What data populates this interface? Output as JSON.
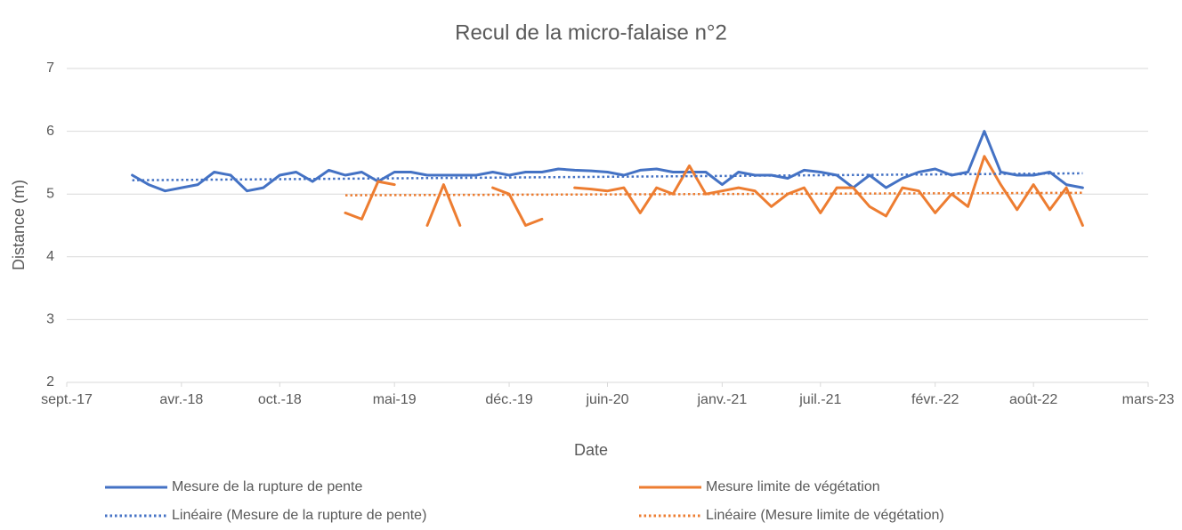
{
  "chart_data": {
    "type": "line",
    "title": "Recul de la micro-falaise n°2",
    "x_label": "Date",
    "y_label": "Distance (m)",
    "x": [
      "2018-01",
      "2018-02",
      "2018-03",
      "2018-04",
      "2018-05",
      "2018-06",
      "2018-07",
      "2018-08",
      "2018-09",
      "2018-10",
      "2018-11",
      "2018-12",
      "2019-01",
      "2019-02",
      "2019-03",
      "2019-04",
      "2019-05",
      "2019-06",
      "2019-07",
      "2019-08",
      "2019-09",
      "2019-10",
      "2019-11",
      "2019-12",
      "2020-01",
      "2020-02",
      "2020-03",
      "2020-04",
      "2020-05",
      "2020-06",
      "2020-07",
      "2020-08",
      "2020-09",
      "2020-10",
      "2020-11",
      "2020-12",
      "2021-01",
      "2021-02",
      "2021-03",
      "2021-04",
      "2021-05",
      "2021-06",
      "2021-07",
      "2021-08",
      "2021-09",
      "2021-10",
      "2021-11",
      "2021-12",
      "2022-01",
      "2022-02",
      "2022-03",
      "2022-04",
      "2022-05",
      "2022-06",
      "2022-07",
      "2022-08",
      "2022-09",
      "2022-10",
      "2022-11"
    ],
    "series": [
      {
        "name": "Mesure de la rupture de pente",
        "color": "#4472c4",
        "style": "solid",
        "values": [
          5.3,
          5.15,
          5.05,
          5.1,
          5.15,
          5.35,
          5.3,
          5.05,
          5.1,
          5.3,
          5.35,
          5.2,
          5.38,
          5.3,
          5.35,
          5.2,
          5.35,
          5.35,
          5.3,
          5.3,
          5.3,
          5.3,
          5.35,
          5.3,
          5.35,
          5.35,
          5.4,
          5.38,
          5.37,
          5.35,
          5.3,
          5.38,
          5.4,
          5.35,
          5.35,
          5.35,
          5.15,
          5.35,
          5.3,
          5.3,
          5.25,
          5.38,
          5.35,
          5.3,
          5.1,
          5.3,
          5.1,
          5.25,
          5.35,
          5.4,
          5.3,
          5.35,
          6.0,
          5.35,
          5.3,
          5.3,
          5.35,
          5.15,
          5.1
        ]
      },
      {
        "name": "Mesure limite de végétation",
        "color": "#ed7d31",
        "style": "solid",
        "values": [
          null,
          null,
          null,
          null,
          null,
          null,
          null,
          null,
          null,
          null,
          null,
          null,
          null,
          4.7,
          4.6,
          5.2,
          5.15,
          null,
          4.5,
          5.15,
          4.5,
          null,
          5.1,
          5.0,
          4.5,
          4.6,
          null,
          5.1,
          5.08,
          5.05,
          5.1,
          4.7,
          5.1,
          5.0,
          5.45,
          5.0,
          5.05,
          5.1,
          5.05,
          4.8,
          5.0,
          5.1,
          4.7,
          5.1,
          5.1,
          4.8,
          4.65,
          5.1,
          5.05,
          4.7,
          5.0,
          4.8,
          5.6,
          5.15,
          4.75,
          5.15,
          4.75,
          5.1,
          4.5
        ]
      },
      {
        "name": "Linéaire (Mesure de la rupture de pente)",
        "color": "#4472c4",
        "style": "dotted",
        "x": [
          "2018-01",
          "2022-11"
        ],
        "values": [
          5.22,
          5.33
        ]
      },
      {
        "name": "Linéaire (Mesure limite de végétation)",
        "color": "#ed7d31",
        "style": "dotted",
        "x": [
          "2019-02",
          "2022-11"
        ],
        "values": [
          4.98,
          5.02
        ]
      }
    ],
    "xlim": [
      "2017-09",
      "2023-03"
    ],
    "xticks": [
      {
        "value": "2017-09",
        "label": "sept.-17"
      },
      {
        "value": "2018-04",
        "label": "avr.-18"
      },
      {
        "value": "2018-10",
        "label": "oct.-18"
      },
      {
        "value": "2019-05",
        "label": "mai-19"
      },
      {
        "value": "2019-12",
        "label": "déc.-19"
      },
      {
        "value": "2020-06",
        "label": "juin-20"
      },
      {
        "value": "2021-01",
        "label": "janv.-21"
      },
      {
        "value": "2021-07",
        "label": "juil.-21"
      },
      {
        "value": "2022-02",
        "label": "févr.-22"
      },
      {
        "value": "2022-08",
        "label": "août-22"
      },
      {
        "value": "2023-03",
        "label": "mars-23"
      }
    ],
    "ylim": [
      2,
      7
    ],
    "yticks": [
      2,
      3,
      4,
      5,
      6,
      7
    ],
    "grid": true,
    "legend": "bottom"
  }
}
